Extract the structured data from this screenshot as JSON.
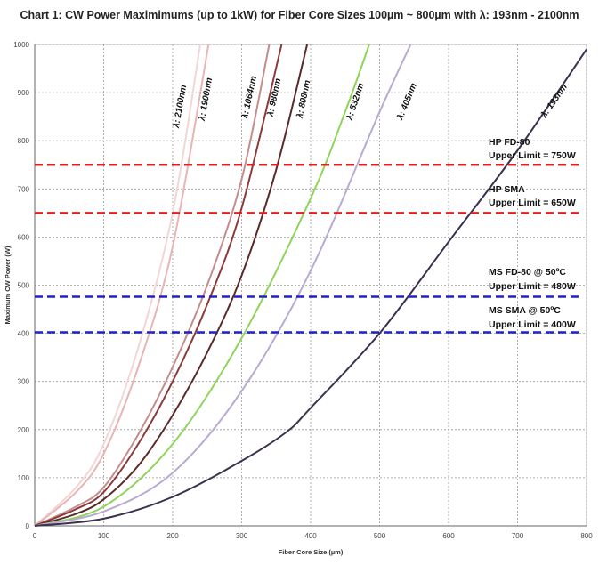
{
  "chart_data": {
    "type": "line",
    "title": "Chart 1: CW Power Maximimums (up to 1kW) for Fiber Core Sizes 100µm ~ 800µm with λ: 193nm - 2100nm",
    "xlabel": "Fiber Core Size (µm)",
    "ylabel": "Maximum CW Power (W)",
    "xlim": [
      0,
      800
    ],
    "ylim": [
      0,
      1000
    ],
    "xticks": [
      0,
      100,
      200,
      300,
      400,
      500,
      600,
      700,
      800
    ],
    "yticks": [
      0,
      100,
      200,
      300,
      400,
      500,
      600,
      700,
      800,
      900,
      1000
    ],
    "grid": true,
    "series": [
      {
        "name": "λ: 2100nm",
        "color": "#f2d6d6",
        "x": [
          0,
          60,
          100,
          150,
          200,
          240
        ],
        "y": [
          0,
          80,
          170,
          370,
          650,
          1000
        ]
      },
      {
        "name": "λ: 1900nm",
        "color": "#e8b4b4",
        "x": [
          0,
          60,
          100,
          150,
          200,
          252
        ],
        "y": [
          0,
          70,
          150,
          330,
          580,
          1000
        ]
      },
      {
        "name": "λ: 1064nm",
        "color": "#c58c8c",
        "x": [
          0,
          60,
          100,
          150,
          200,
          250,
          300,
          340
        ],
        "y": [
          0,
          40,
          80,
          190,
          330,
          500,
          720,
          1000
        ]
      },
      {
        "name": "λ: 980nm",
        "color": "#8b3a3a",
        "x": [
          0,
          60,
          100,
          150,
          200,
          250,
          300,
          358
        ],
        "y": [
          0,
          35,
          70,
          170,
          300,
          460,
          660,
          1000
        ]
      },
      {
        "name": "λ: 808nm",
        "color": "#5a2a2a",
        "x": [
          0,
          60,
          100,
          150,
          200,
          250,
          300,
          350,
          395
        ],
        "y": [
          0,
          25,
          55,
          125,
          230,
          360,
          520,
          740,
          1000
        ]
      },
      {
        "name": "λ: 532nm",
        "color": "#8fd45a",
        "x": [
          0,
          100,
          200,
          300,
          400,
          450,
          485
        ],
        "y": [
          0,
          40,
          170,
          390,
          680,
          860,
          1000
        ]
      },
      {
        "name": "λ: 405nm",
        "color": "#b8aad0",
        "x": [
          0,
          100,
          200,
          300,
          400,
          500,
          545
        ],
        "y": [
          0,
          30,
          110,
          280,
          530,
          860,
          1000
        ]
      },
      {
        "name": "λ: 193nm",
        "color": "#3c3050",
        "x": [
          0,
          100,
          200,
          300,
          365,
          400,
          500,
          600,
          700,
          800
        ],
        "y": [
          0,
          15,
          60,
          135,
          195,
          245,
          400,
          590,
          780,
          990
        ]
      }
    ],
    "reference_lines": [
      {
        "name": "HP FD-80",
        "upper_limit_text": "Upper Limit = 750W",
        "value": 750,
        "color": "#e02020"
      },
      {
        "name": "HP SMA",
        "upper_limit_text": "Upper Limit = 650W",
        "value": 650,
        "color": "#e02020"
      },
      {
        "name": "MS FD-80 @ 50ºC",
        "upper_limit_text": "Upper Limit = 480W",
        "value": 476,
        "color": "#2020d0"
      },
      {
        "name": "MS SMA @ 50ºC",
        "upper_limit_text": "Upper Limit = 400W",
        "value": 402,
        "color": "#2020d0"
      }
    ]
  }
}
